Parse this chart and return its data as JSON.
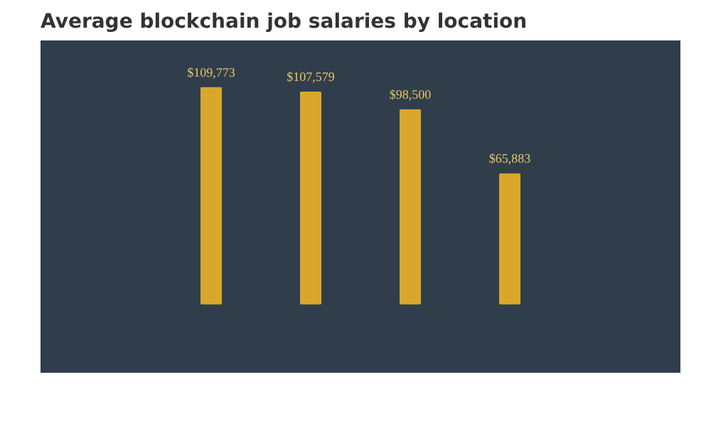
{
  "chart_data": {
    "type": "bar",
    "title": "Average blockchain job salaries by location",
    "categories": [
      null,
      null,
      null,
      null
    ],
    "values": [
      109773,
      107579,
      98500,
      65883
    ],
    "value_labels": [
      "$109,773",
      "$107,579",
      "$98,500",
      "$65,883"
    ],
    "color": "#d9a72c"
  }
}
